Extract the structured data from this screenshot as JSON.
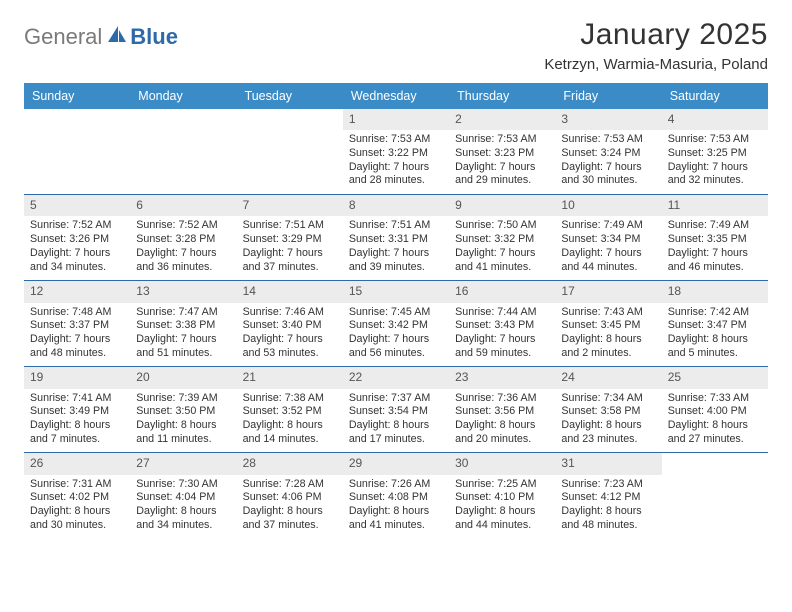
{
  "logo": {
    "word1": "General",
    "word2": "Blue"
  },
  "title": "January 2025",
  "location": "Ketrzyn, Warmia-Masuria, Poland",
  "colors": {
    "header_bg": "#3b8bc7",
    "header_text": "#ffffff",
    "week_border": "#2f6aa8",
    "daynum_bg": "#ececec",
    "daynum_text": "#555555",
    "body_text": "#333333",
    "logo_gray": "#7a7a7a",
    "logo_blue": "#2f6aa8"
  },
  "weekdays": [
    "Sunday",
    "Monday",
    "Tuesday",
    "Wednesday",
    "Thursday",
    "Friday",
    "Saturday"
  ],
  "weeks": [
    [
      null,
      null,
      null,
      {
        "n": "1",
        "sr": "Sunrise: 7:53 AM",
        "ss": "Sunset: 3:22 PM",
        "d1": "Daylight: 7 hours",
        "d2": "and 28 minutes."
      },
      {
        "n": "2",
        "sr": "Sunrise: 7:53 AM",
        "ss": "Sunset: 3:23 PM",
        "d1": "Daylight: 7 hours",
        "d2": "and 29 minutes."
      },
      {
        "n": "3",
        "sr": "Sunrise: 7:53 AM",
        "ss": "Sunset: 3:24 PM",
        "d1": "Daylight: 7 hours",
        "d2": "and 30 minutes."
      },
      {
        "n": "4",
        "sr": "Sunrise: 7:53 AM",
        "ss": "Sunset: 3:25 PM",
        "d1": "Daylight: 7 hours",
        "d2": "and 32 minutes."
      }
    ],
    [
      {
        "n": "5",
        "sr": "Sunrise: 7:52 AM",
        "ss": "Sunset: 3:26 PM",
        "d1": "Daylight: 7 hours",
        "d2": "and 34 minutes."
      },
      {
        "n": "6",
        "sr": "Sunrise: 7:52 AM",
        "ss": "Sunset: 3:28 PM",
        "d1": "Daylight: 7 hours",
        "d2": "and 36 minutes."
      },
      {
        "n": "7",
        "sr": "Sunrise: 7:51 AM",
        "ss": "Sunset: 3:29 PM",
        "d1": "Daylight: 7 hours",
        "d2": "and 37 minutes."
      },
      {
        "n": "8",
        "sr": "Sunrise: 7:51 AM",
        "ss": "Sunset: 3:31 PM",
        "d1": "Daylight: 7 hours",
        "d2": "and 39 minutes."
      },
      {
        "n": "9",
        "sr": "Sunrise: 7:50 AM",
        "ss": "Sunset: 3:32 PM",
        "d1": "Daylight: 7 hours",
        "d2": "and 41 minutes."
      },
      {
        "n": "10",
        "sr": "Sunrise: 7:49 AM",
        "ss": "Sunset: 3:34 PM",
        "d1": "Daylight: 7 hours",
        "d2": "and 44 minutes."
      },
      {
        "n": "11",
        "sr": "Sunrise: 7:49 AM",
        "ss": "Sunset: 3:35 PM",
        "d1": "Daylight: 7 hours",
        "d2": "and 46 minutes."
      }
    ],
    [
      {
        "n": "12",
        "sr": "Sunrise: 7:48 AM",
        "ss": "Sunset: 3:37 PM",
        "d1": "Daylight: 7 hours",
        "d2": "and 48 minutes."
      },
      {
        "n": "13",
        "sr": "Sunrise: 7:47 AM",
        "ss": "Sunset: 3:38 PM",
        "d1": "Daylight: 7 hours",
        "d2": "and 51 minutes."
      },
      {
        "n": "14",
        "sr": "Sunrise: 7:46 AM",
        "ss": "Sunset: 3:40 PM",
        "d1": "Daylight: 7 hours",
        "d2": "and 53 minutes."
      },
      {
        "n": "15",
        "sr": "Sunrise: 7:45 AM",
        "ss": "Sunset: 3:42 PM",
        "d1": "Daylight: 7 hours",
        "d2": "and 56 minutes."
      },
      {
        "n": "16",
        "sr": "Sunrise: 7:44 AM",
        "ss": "Sunset: 3:43 PM",
        "d1": "Daylight: 7 hours",
        "d2": "and 59 minutes."
      },
      {
        "n": "17",
        "sr": "Sunrise: 7:43 AM",
        "ss": "Sunset: 3:45 PM",
        "d1": "Daylight: 8 hours",
        "d2": "and 2 minutes."
      },
      {
        "n": "18",
        "sr": "Sunrise: 7:42 AM",
        "ss": "Sunset: 3:47 PM",
        "d1": "Daylight: 8 hours",
        "d2": "and 5 minutes."
      }
    ],
    [
      {
        "n": "19",
        "sr": "Sunrise: 7:41 AM",
        "ss": "Sunset: 3:49 PM",
        "d1": "Daylight: 8 hours",
        "d2": "and 7 minutes."
      },
      {
        "n": "20",
        "sr": "Sunrise: 7:39 AM",
        "ss": "Sunset: 3:50 PM",
        "d1": "Daylight: 8 hours",
        "d2": "and 11 minutes."
      },
      {
        "n": "21",
        "sr": "Sunrise: 7:38 AM",
        "ss": "Sunset: 3:52 PM",
        "d1": "Daylight: 8 hours",
        "d2": "and 14 minutes."
      },
      {
        "n": "22",
        "sr": "Sunrise: 7:37 AM",
        "ss": "Sunset: 3:54 PM",
        "d1": "Daylight: 8 hours",
        "d2": "and 17 minutes."
      },
      {
        "n": "23",
        "sr": "Sunrise: 7:36 AM",
        "ss": "Sunset: 3:56 PM",
        "d1": "Daylight: 8 hours",
        "d2": "and 20 minutes."
      },
      {
        "n": "24",
        "sr": "Sunrise: 7:34 AM",
        "ss": "Sunset: 3:58 PM",
        "d1": "Daylight: 8 hours",
        "d2": "and 23 minutes."
      },
      {
        "n": "25",
        "sr": "Sunrise: 7:33 AM",
        "ss": "Sunset: 4:00 PM",
        "d1": "Daylight: 8 hours",
        "d2": "and 27 minutes."
      }
    ],
    [
      {
        "n": "26",
        "sr": "Sunrise: 7:31 AM",
        "ss": "Sunset: 4:02 PM",
        "d1": "Daylight: 8 hours",
        "d2": "and 30 minutes."
      },
      {
        "n": "27",
        "sr": "Sunrise: 7:30 AM",
        "ss": "Sunset: 4:04 PM",
        "d1": "Daylight: 8 hours",
        "d2": "and 34 minutes."
      },
      {
        "n": "28",
        "sr": "Sunrise: 7:28 AM",
        "ss": "Sunset: 4:06 PM",
        "d1": "Daylight: 8 hours",
        "d2": "and 37 minutes."
      },
      {
        "n": "29",
        "sr": "Sunrise: 7:26 AM",
        "ss": "Sunset: 4:08 PM",
        "d1": "Daylight: 8 hours",
        "d2": "and 41 minutes."
      },
      {
        "n": "30",
        "sr": "Sunrise: 7:25 AM",
        "ss": "Sunset: 4:10 PM",
        "d1": "Daylight: 8 hours",
        "d2": "and 44 minutes."
      },
      {
        "n": "31",
        "sr": "Sunrise: 7:23 AM",
        "ss": "Sunset: 4:12 PM",
        "d1": "Daylight: 8 hours",
        "d2": "and 48 minutes."
      },
      null
    ]
  ]
}
